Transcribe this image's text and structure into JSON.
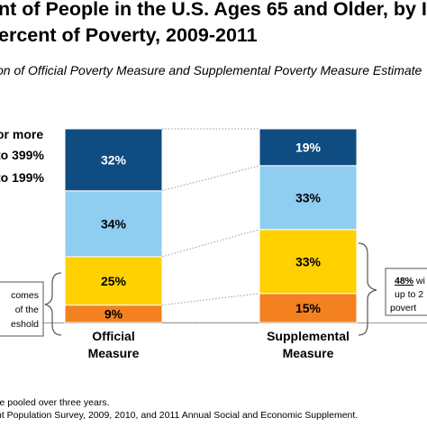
{
  "title": {
    "line1": "nt of People in the U.S. Ages 65 and Older, by In",
    "line2": "ercent of Poverty, 2009-2011"
  },
  "subtitle": "on of Official Poverty Measure and Supplemental Poverty Measure Estimate",
  "legend": [
    {
      "text": "or more",
      "color": "#0f4c81"
    },
    {
      "text": "to 399%",
      "color": "#8fcdf1"
    },
    {
      "text": "to 199%",
      "color": "#ffd100"
    }
  ],
  "left_annotation": [
    "comes",
    "of the",
    "eshold"
  ],
  "right_annotation": {
    "line1_pct": "48%",
    "line1_rest": " wi",
    "line2": "up to 2",
    "line3": "povert"
  },
  "footnotes": [
    "re pooled over three years.",
    "nt Population Survey, 2009, 2010, and 2011 Annual Social and Economic Supplement."
  ],
  "colors": {
    "segment_1": "#f48120",
    "segment_2": "#ffd100",
    "segment_3": "#8fcdf1",
    "segment_4": "#0f4c81"
  },
  "chart_data": {
    "type": "bar",
    "stacked": true,
    "categories": [
      "Official Measure",
      "Supplemental Measure"
    ],
    "category_lines": [
      [
        "Official",
        "Measure"
      ],
      [
        "Supplemental",
        "Measure"
      ]
    ],
    "series": [
      {
        "values": [
          9,
          15
        ],
        "labels": [
          "9%",
          "15%"
        ],
        "color": "#f48120"
      },
      {
        "values": [
          25,
          33
        ],
        "labels": [
          "25%",
          "33%"
        ],
        "color": "#ffd100"
      },
      {
        "values": [
          34,
          33
        ],
        "labels": [
          "34%",
          "33%"
        ],
        "color": "#8fcdf1"
      },
      {
        "name": "or more",
        "values": [
          32,
          19
        ],
        "labels": [
          "32%",
          "19%"
        ],
        "color": "#0f4c81"
      }
    ],
    "ylim": [
      0,
      100
    ]
  }
}
